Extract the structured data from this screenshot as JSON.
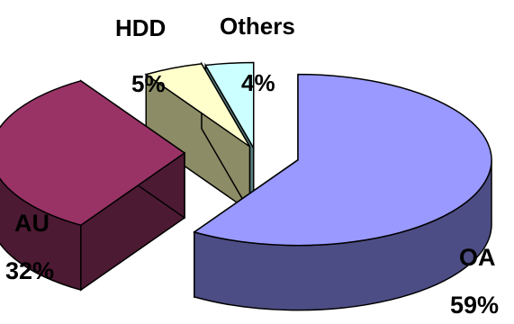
{
  "chart_data": {
    "type": "pie",
    "title": "",
    "style": "3d-exploded",
    "slices": [
      {
        "label": "OA",
        "value": 59,
        "display": "59%",
        "color": "#9999ff",
        "side_color": "#4d4d85"
      },
      {
        "label": "AU",
        "value": 32,
        "display": "32%",
        "color": "#993366",
        "side_color": "#4d1a33"
      },
      {
        "label": "HDD",
        "value": 5,
        "display": "5%",
        "color": "#ffffcc",
        "side_color": "#8c8c66"
      },
      {
        "label": "Others",
        "value": 4,
        "display": "4%",
        "color": "#ccffff",
        "side_color": "#5a8080"
      }
    ],
    "legend": "none"
  }
}
